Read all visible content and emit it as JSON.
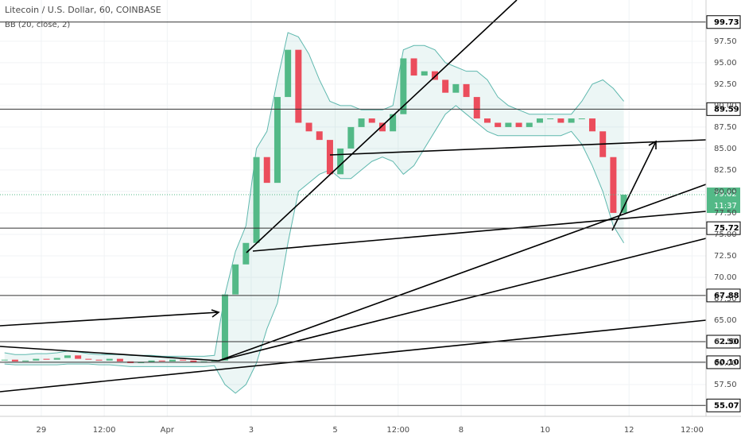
{
  "chart_data": {
    "type": "candlestick",
    "title": "Litecoin / U.S. Dollar, 60, COINBASE",
    "subtitle": "BB (20, close, 2)",
    "x": [
      -21,
      -15,
      -9,
      -3,
      3,
      9,
      15,
      21,
      27,
      33,
      39,
      45,
      51,
      57,
      63,
      69,
      75,
      81,
      87,
      93,
      99,
      105,
      111,
      117,
      123,
      129,
      135,
      141,
      147,
      153,
      159,
      165,
      171,
      177,
      183,
      189,
      195,
      201,
      207,
      213,
      219,
      225,
      231,
      237,
      243,
      249,
      255,
      261,
      267,
      273,
      279,
      285,
      291,
      297,
      303,
      309,
      315,
      321,
      327,
      333
    ],
    "close": [
      60.4,
      60.2,
      60.3,
      60.5,
      60.4,
      60.6,
      60.9,
      60.5,
      60.4,
      60.3,
      60.5,
      60.2,
      60.0,
      60.1,
      60.3,
      60.2,
      60.4,
      60.3,
      60.1,
      60.2,
      60.3,
      68.0,
      71.5,
      74.0,
      84.0,
      81.0,
      91.0,
      96.5,
      88.0,
      87.0,
      86.0,
      82.0,
      85.0,
      87.5,
      88.5,
      88.0,
      87.0,
      89.0,
      95.5,
      93.5,
      94.0,
      93.0,
      91.5,
      92.5,
      91.0,
      88.5,
      88.0,
      87.5,
      88.0,
      87.5,
      88.0,
      88.5,
      88.5,
      88.0,
      88.5,
      88.5,
      87.0,
      84.0,
      77.5,
      79.62
    ],
    "upper": [
      61.2,
      61.0,
      61.0,
      61.1,
      61.1,
      61.2,
      61.4,
      61.3,
      61.1,
      61.0,
      61.0,
      61.0,
      60.9,
      60.9,
      60.9,
      60.8,
      60.8,
      60.8,
      60.8,
      60.8,
      60.9,
      68,
      73,
      76,
      85,
      87,
      93,
      98.5,
      98,
      96,
      93,
      90.5,
      90,
      90,
      89.5,
      89.5,
      89.5,
      90,
      96.5,
      97,
      97,
      96.5,
      95,
      94.5,
      94,
      94,
      93,
      91,
      90,
      89.5,
      89,
      89,
      89,
      89,
      89,
      90.5,
      92.5,
      93,
      92,
      90.5
    ],
    "lower": [
      59.9,
      59.8,
      59.8,
      59.8,
      59.8,
      59.8,
      59.9,
      59.9,
      59.9,
      59.8,
      59.8,
      59.7,
      59.6,
      59.6,
      59.6,
      59.6,
      59.6,
      59.6,
      59.6,
      59.6,
      59.7,
      57.5,
      56.5,
      57.5,
      60,
      64,
      67,
      74,
      80,
      81,
      82,
      82.5,
      81.5,
      81.5,
      82.5,
      83.5,
      84,
      83.5,
      82,
      83,
      85,
      87,
      89,
      90,
      89,
      88,
      87,
      86.5,
      86.5,
      86.5,
      86.5,
      86.5,
      86.5,
      86.5,
      87,
      85.5,
      83,
      80,
      76,
      74
    ],
    "up_color": "#53b987",
    "down_color": "#eb4d5c",
    "band_color": "#5fb8ae",
    "xlim": [
      -23.6,
      380
    ],
    "ylim": [
      53.8,
      102.3
    ],
    "xticks": [
      {
        "value": 0,
        "label": "29"
      },
      {
        "value": 36,
        "label": "12:00"
      },
      {
        "value": 72,
        "label": "Apr"
      },
      {
        "value": 120,
        "label": "3"
      },
      {
        "value": 168,
        "label": "5"
      },
      {
        "value": 204,
        "label": "12:00"
      },
      {
        "value": 240,
        "label": "8"
      },
      {
        "value": 288,
        "label": "10"
      },
      {
        "value": 336,
        "label": "12"
      },
      {
        "value": 372,
        "label": "12:00"
      }
    ],
    "yticks": [
      {
        "value": 57.5,
        "label": "57.50"
      },
      {
        "value": 60,
        "label": "60.00"
      },
      {
        "value": 62.5,
        "label": "62.50"
      },
      {
        "value": 65,
        "label": "65.00"
      },
      {
        "value": 67.5,
        "label": "67.50"
      },
      {
        "value": 70,
        "label": "70.00"
      },
      {
        "value": 72.5,
        "label": "72.50"
      },
      {
        "value": 75,
        "label": "75.00"
      },
      {
        "value": 77.5,
        "label": "77.50"
      },
      {
        "value": 80,
        "label": "80.00"
      },
      {
        "value": 82.5,
        "label": "82.50"
      },
      {
        "value": 85,
        "label": "85.00"
      },
      {
        "value": 87.5,
        "label": "87.50"
      },
      {
        "value": 90,
        "label": "90.00"
      },
      {
        "value": 92.5,
        "label": "92.50"
      },
      {
        "value": 95,
        "label": "95.00"
      },
      {
        "value": 97.5,
        "label": "97.50"
      }
    ],
    "levels": [
      99.73,
      89.59,
      75.72,
      67.88,
      {
        "value": 62.5,
        "label": "62.50"
      },
      {
        "value": 60.1,
        "label": "60.10"
      },
      55.07
    ],
    "last_price": 79.62,
    "countdown": "11:37",
    "grid": true
  }
}
